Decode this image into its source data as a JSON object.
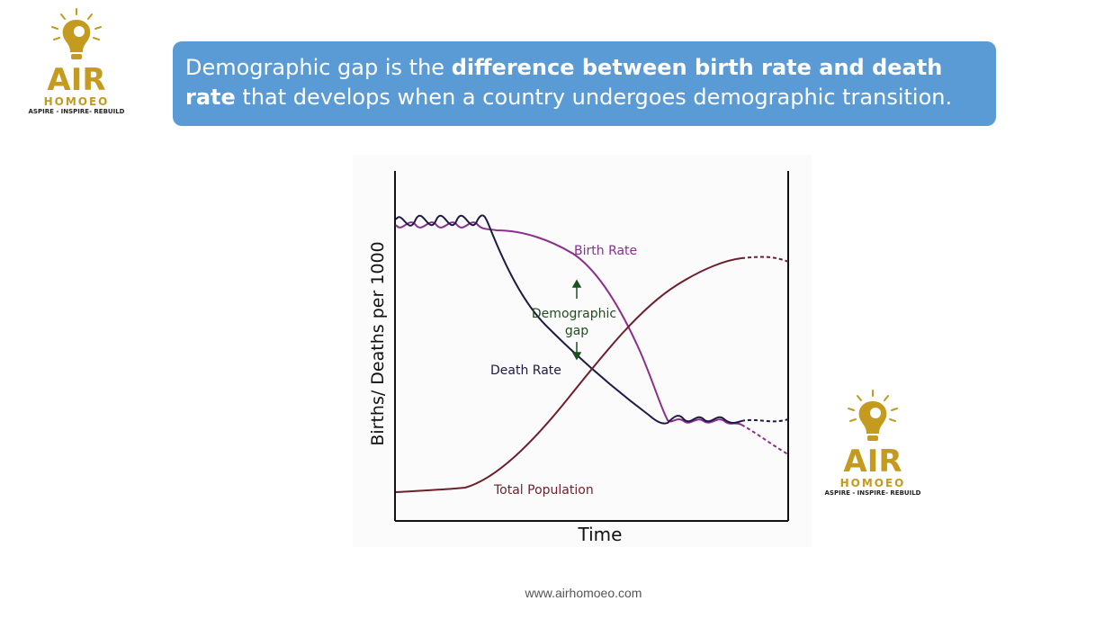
{
  "logo": {
    "name": "AIR",
    "sub": "HOMOEO",
    "tagline": "ASPIRE - INSPIRE- REBUILD",
    "color": "#c49a1f"
  },
  "banner": {
    "part1": "Demographic gap is the ",
    "bold": "difference between birth rate and death rate",
    "part2": " that develops when a country undergoes demographic transition.",
    "background": "#5b9bd5"
  },
  "diagram": {
    "ylabel": "Births/ Deaths per 1000",
    "xlabel": "Time",
    "birth_rate_label": "Birth Rate",
    "death_rate_label": "Death Rate",
    "gap_label_line1": "Demographic",
    "gap_label_line2": "gap",
    "population_label": "Total Population",
    "colors": {
      "birth": "#8b2f8f",
      "death": "#1f1a45",
      "population": "#6e1f2a",
      "gap_arrow": "#1f4f1f"
    }
  },
  "footer": {
    "url": "www.airhomoeo.com"
  }
}
